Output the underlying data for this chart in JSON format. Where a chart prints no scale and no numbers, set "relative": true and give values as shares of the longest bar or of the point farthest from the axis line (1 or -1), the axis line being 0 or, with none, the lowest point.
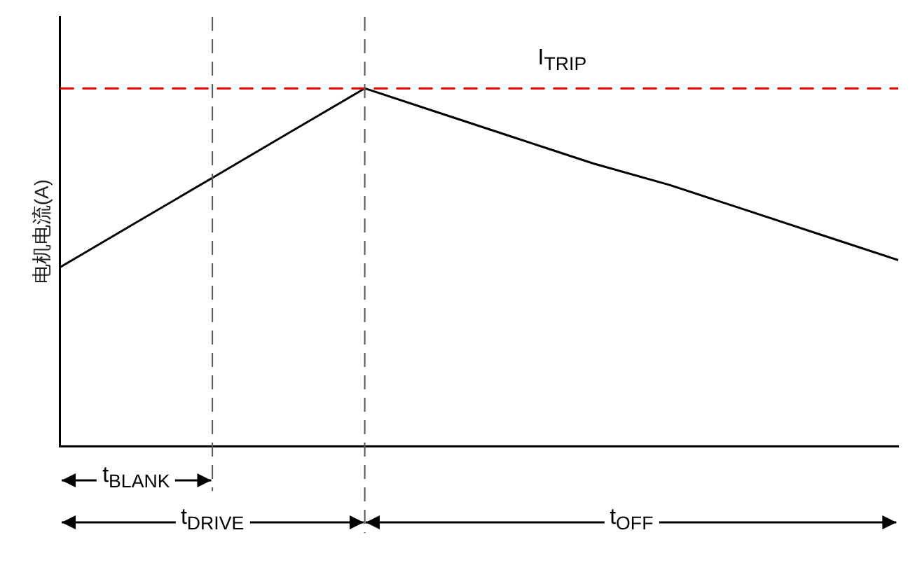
{
  "chart_data": {
    "type": "line",
    "relative": true,
    "ylabel": "电机电流(A)",
    "categories": [
      null,
      null,
      null,
      null,
      null,
      null,
      null,
      null,
      null,
      null,
      null,
      null
    ],
    "series": [
      {
        "color": "#000000",
        "values": [
          0.5,
          0.625,
          0.75,
          0.875,
          1,
          0.93,
          0.86,
          0.79,
          0.73,
          0.66,
          0.59,
          0.52
        ]
      }
    ],
    "marker": "none",
    "line_style": "solid",
    "grid": false,
    "legend": false,
    "ref_lines": [
      {
        "axis": "y",
        "value": 1,
        "label": "I$_{TRIP}$",
        "color": "#e00000",
        "line_style": "dashed"
      }
    ],
    "annotations": [
      "t$_{BLANK}$",
      "t$_{DRIVE}$",
      "t$_{OFF}$"
    ]
  }
}
